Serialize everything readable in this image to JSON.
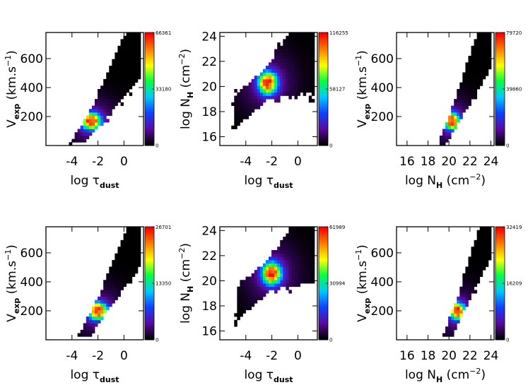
{
  "chart_data": [
    {
      "type": "heatmap",
      "xlabel": {
        "base": "log τ",
        "sub": "dust",
        "sup": ""
      },
      "ylabel": {
        "base": "V",
        "sub": "exp",
        "sup": "",
        "tail": " (km.s",
        "tail_sup": "−1",
        "tail_end": ")"
      },
      "xticks": [
        "-4",
        "-2",
        "0"
      ],
      "xtick_values": [
        -4,
        -2,
        0
      ],
      "xlim": [
        -6,
        1.5
      ],
      "yticks": [
        "200",
        "400",
        "600"
      ],
      "ytick_values": [
        200,
        400,
        600
      ],
      "ylim": [
        0,
        780
      ],
      "colorbar": {
        "min": "0",
        "mid": "33180",
        "max": "66361"
      },
      "density": {
        "peak": [
          -2.5,
          170
        ],
        "ridge_slope": 150,
        "hot_radius": [
          0.5,
          40
        ]
      }
    },
    {
      "type": "heatmap",
      "xlabel": {
        "base": "log τ",
        "sub": "dust",
        "sup": ""
      },
      "ylabel": {
        "base": "log N",
        "sub": "H",
        "sup": "",
        "tail": " (cm",
        "tail_sup": "−2",
        "tail_end": ")"
      },
      "xticks": [
        "-4",
        "-2",
        "0"
      ],
      "xtick_values": [
        -4,
        -2,
        0
      ],
      "xlim": [
        -6,
        1.5
      ],
      "yticks": [
        "16",
        "18",
        "20",
        "22",
        "24"
      ],
      "ytick_values": [
        16,
        18,
        20,
        22,
        24
      ],
      "ylim": [
        15.3,
        24.3
      ],
      "colorbar": {
        "min": "0",
        "mid": "58127",
        "max": "116255"
      },
      "density": {
        "peak": [
          -2.3,
          20.3
        ],
        "ridge_slope": 0.9,
        "hot_radius": [
          0.5,
          0.6
        ]
      }
    },
    {
      "type": "heatmap",
      "xlabel": {
        "base": "log N",
        "sub": "H",
        "sup": "",
        "tail": " (cm",
        "tail_sup": "−2",
        "tail_end": ")"
      },
      "ylabel": {
        "base": "V",
        "sub": "exp",
        "sup": "",
        "tail": " (km.s",
        "tail_sup": "−1",
        "tail_end": ")"
      },
      "xticks": [
        "16",
        "18",
        "20",
        "22",
        "24"
      ],
      "xtick_values": [
        16,
        18,
        20,
        22,
        24
      ],
      "xlim": [
        15,
        24.3
      ],
      "yticks": [
        "200",
        "400",
        "600"
      ],
      "ytick_values": [
        200,
        400,
        600
      ],
      "ylim": [
        0,
        780
      ],
      "colorbar": {
        "min": "0",
        "mid": "39860",
        "max": "79720"
      },
      "density": {
        "peak": [
          20.3,
          170
        ],
        "ridge_slope": 170,
        "hot_radius": [
          0.5,
          40
        ]
      }
    },
    {
      "type": "heatmap",
      "xlabel": {
        "base": "log τ",
        "sub": "dust",
        "sup": ""
      },
      "ylabel": {
        "base": "V",
        "sub": "exp",
        "sup": "",
        "tail": " (km.s",
        "tail_sup": "−1",
        "tail_end": ")"
      },
      "xticks": [
        "-4",
        "-2",
        "0"
      ],
      "xtick_values": [
        -4,
        -2,
        0
      ],
      "xlim": [
        -6,
        1.5
      ],
      "yticks": [
        "200",
        "400",
        "600"
      ],
      "ytick_values": [
        200,
        400,
        600
      ],
      "ylim": [
        0,
        780
      ],
      "colorbar": {
        "min": "0",
        "mid": "13350",
        "max": "26701"
      },
      "density": {
        "peak": [
          -2.0,
          200
        ],
        "ridge_slope": 170,
        "hot_radius": [
          0.5,
          40
        ]
      }
    },
    {
      "type": "heatmap",
      "xlabel": {
        "base": "log τ",
        "sub": "dust",
        "sup": ""
      },
      "ylabel": {
        "base": "log N",
        "sub": "H",
        "sup": "",
        "tail": " (cm",
        "tail_sup": "−2",
        "tail_end": ")"
      },
      "xticks": [
        "-4",
        "-2",
        "0"
      ],
      "xtick_values": [
        -4,
        -2,
        0
      ],
      "xlim": [
        -6,
        1.5
      ],
      "yticks": [
        "16",
        "18",
        "20",
        "22",
        "24"
      ],
      "ytick_values": [
        16,
        18,
        20,
        22,
        24
      ],
      "ylim": [
        15.3,
        24.3
      ],
      "colorbar": {
        "min": "0",
        "mid": "30994",
        "max": "61989"
      },
      "density": {
        "peak": [
          -2.0,
          20.6
        ],
        "ridge_slope": 0.9,
        "hot_radius": [
          0.5,
          0.6
        ]
      }
    },
    {
      "type": "heatmap",
      "xlabel": {
        "base": "log N",
        "sub": "H",
        "sup": "",
        "tail": " (cm",
        "tail_sup": "−2",
        "tail_end": ")"
      },
      "ylabel": {
        "base": "V",
        "sub": "exp",
        "sup": "",
        "tail": " (km.s",
        "tail_sup": "−1",
        "tail_end": ")"
      },
      "xticks": [
        "16",
        "18",
        "20",
        "22",
        "24"
      ],
      "xtick_values": [
        16,
        18,
        20,
        22,
        24
      ],
      "xlim": [
        15,
        24.3
      ],
      "yticks": [
        "200",
        "400",
        "600"
      ],
      "ytick_values": [
        200,
        400,
        600
      ],
      "ylim": [
        0,
        780
      ],
      "colorbar": {
        "min": "0",
        "mid": "16209",
        "max": "32419"
      },
      "density": {
        "peak": [
          20.8,
          200
        ],
        "ridge_slope": 190,
        "hot_radius": [
          0.5,
          40
        ]
      }
    }
  ],
  "colormap": [
    "#000000",
    "#5a0aa0",
    "#1040ff",
    "#00c8ff",
    "#00ff40",
    "#ffff00",
    "#ff8000",
    "#ff0000"
  ]
}
